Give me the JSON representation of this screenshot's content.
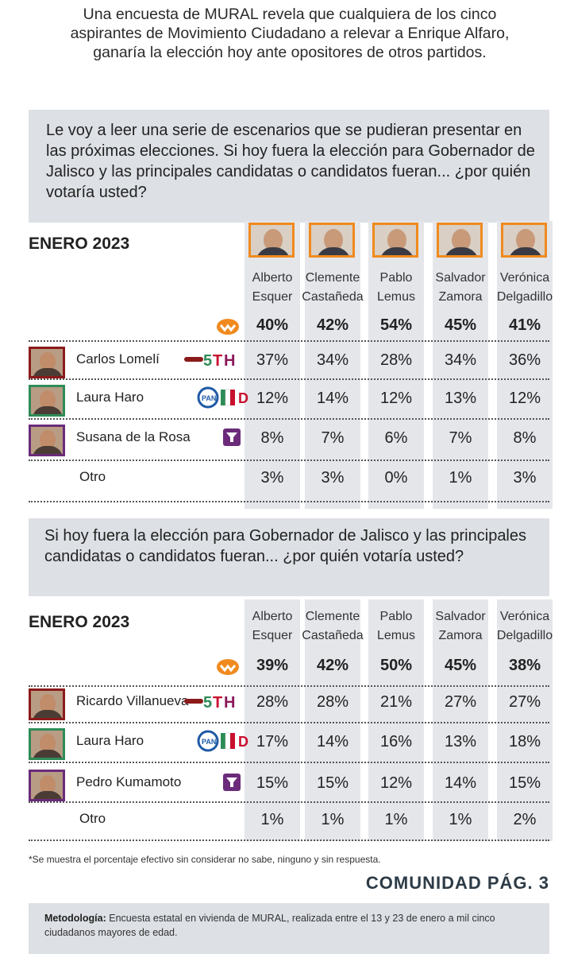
{
  "headline": "Una encuesta de MURAL revela que cualquiera de los cinco aspirantes de Movimiento Ciudadano a relevar a Enrique Alfaro, ganaría la elección hoy ante opositores de otros partidos.",
  "colors": {
    "accent_orange": "#f08a1e",
    "panel_gray": "#dde0e5",
    "column_gray": "#e4e6ea",
    "morena_red": "#8b1a1a",
    "pan_blue": "#1f5aa6",
    "green": "#2e8b57",
    "purple": "#6b2b7a"
  },
  "candidates": [
    {
      "first": "Alberto",
      "last": "Esquer"
    },
    {
      "first": "Clemente",
      "last": "Castañeda"
    },
    {
      "first": "Pablo",
      "last": "Lemus"
    },
    {
      "first": "Salvador",
      "last": "Zamora"
    },
    {
      "first": "Verónica",
      "last": "Delgadillo"
    }
  ],
  "chart_data": [
    {
      "type": "table",
      "title": "Le voy a leer una serie de escenarios que se pudieran presentar en las próximas elecciones. Si hoy fuera la elección para Gobernador de Jalisco y las principales candidatas o candidatos fueran... ¿por quién votaría usted?",
      "period": "ENERO 2023",
      "columns": [
        "Alberto Esquer",
        "Clemente Castañeda",
        "Pablo Lemus",
        "Salvador Zamora",
        "Verónica Delgadillo"
      ],
      "rows": [
        {
          "label": "",
          "party_icon": "mc-logo",
          "values": [
            "40%",
            "42%",
            "54%",
            "45%",
            "41%"
          ]
        },
        {
          "label": "Carlos Lomelí",
          "party_icon": "morena-pt-pv-logo",
          "values": [
            "37%",
            "34%",
            "28%",
            "34%",
            "36%"
          ]
        },
        {
          "label": "Laura Haro",
          "party_icon": "pan-pri-prd-logo",
          "values": [
            "12%",
            "14%",
            "12%",
            "13%",
            "12%"
          ]
        },
        {
          "label": "Susana de la Rosa",
          "party_icon": "hagamos-logo",
          "values": [
            "8%",
            "7%",
            "6%",
            "7%",
            "8%"
          ]
        },
        {
          "label": "Otro",
          "party_icon": "",
          "values": [
            "3%",
            "3%",
            "0%",
            "1%",
            "3%"
          ]
        }
      ]
    },
    {
      "type": "table",
      "title": "Si hoy fuera la elección para Gobernador de Jalisco y las principales candidatas o candidatos fueran... ¿por quién votaría usted?",
      "period": "ENERO 2023",
      "columns": [
        "Alberto Esquer",
        "Clemente Castañeda",
        "Pablo Lemus",
        "Salvador Zamora",
        "Verónica Delgadillo"
      ],
      "rows": [
        {
          "label": "",
          "party_icon": "mc-logo",
          "values": [
            "39%",
            "42%",
            "50%",
            "45%",
            "38%"
          ]
        },
        {
          "label": "Ricardo Villanueva",
          "party_icon": "morena-pt-pv-logo",
          "values": [
            "28%",
            "28%",
            "21%",
            "27%",
            "27%"
          ]
        },
        {
          "label": "Laura Haro",
          "party_icon": "pan-pri-prd-logo",
          "values": [
            "17%",
            "14%",
            "16%",
            "13%",
            "18%"
          ]
        },
        {
          "label": "Pedro Kumamoto",
          "party_icon": "hagamos-logo",
          "values": [
            "15%",
            "15%",
            "12%",
            "14%",
            "15%"
          ]
        },
        {
          "label": "Otro",
          "party_icon": "",
          "values": [
            "1%",
            "1%",
            "1%",
            "1%",
            "2%"
          ]
        }
      ]
    }
  ],
  "footnote": "*Se muestra el porcentaje efectivo sin considerar no sabe, ninguno y sin respuesta.",
  "page_ref": "COMUNIDAD PÁG. 3",
  "methodology": {
    "label": "Metodología:",
    "text": "Encuesta estatal en vivienda de MURAL, realizada entre el 13 y 23 de enero a mil cinco ciudadanos mayores de edad."
  }
}
